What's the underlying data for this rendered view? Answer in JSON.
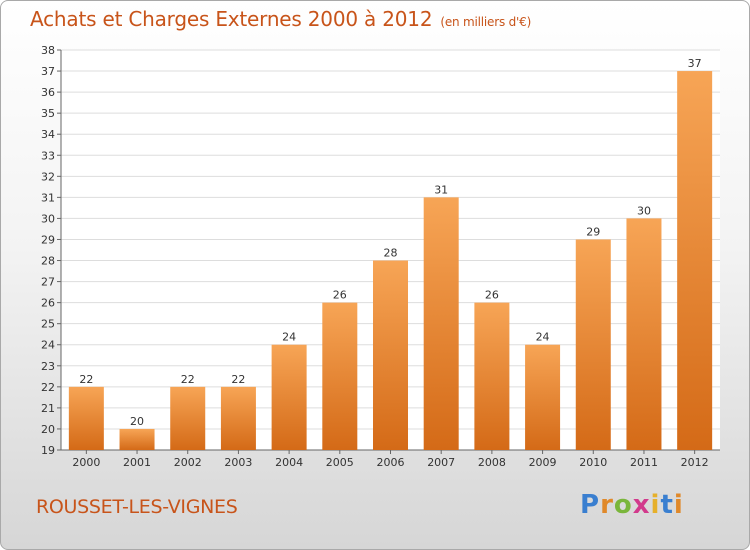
{
  "header": {
    "title": "Achats et Charges Externes 2000 à 2012",
    "unit": "(en milliers d'€)"
  },
  "footer": {
    "commune": "ROUSSET-LES-VIGNES",
    "brand_letters": [
      "P",
      "r",
      "o",
      "x",
      "i",
      "t",
      "i"
    ]
  },
  "colors": {
    "bar_top": "#f7a556",
    "bar_bottom": "#d46a17",
    "title": "#c8541a",
    "grid": "#dddddd"
  },
  "chart_data": {
    "type": "bar",
    "categories": [
      "2000",
      "2001",
      "2002",
      "2003",
      "2004",
      "2005",
      "2006",
      "2007",
      "2008",
      "2009",
      "2010",
      "2011",
      "2012"
    ],
    "values": [
      22,
      20,
      22,
      22,
      24,
      26,
      28,
      31,
      26,
      24,
      29,
      30,
      37
    ],
    "ylim": [
      19,
      38
    ],
    "yticks": [
      19,
      20,
      21,
      22,
      23,
      24,
      25,
      26,
      27,
      28,
      29,
      30,
      31,
      32,
      33,
      34,
      35,
      36,
      37,
      38
    ],
    "grid": true,
    "legend": "none",
    "xlabel": "",
    "ylabel": ""
  }
}
